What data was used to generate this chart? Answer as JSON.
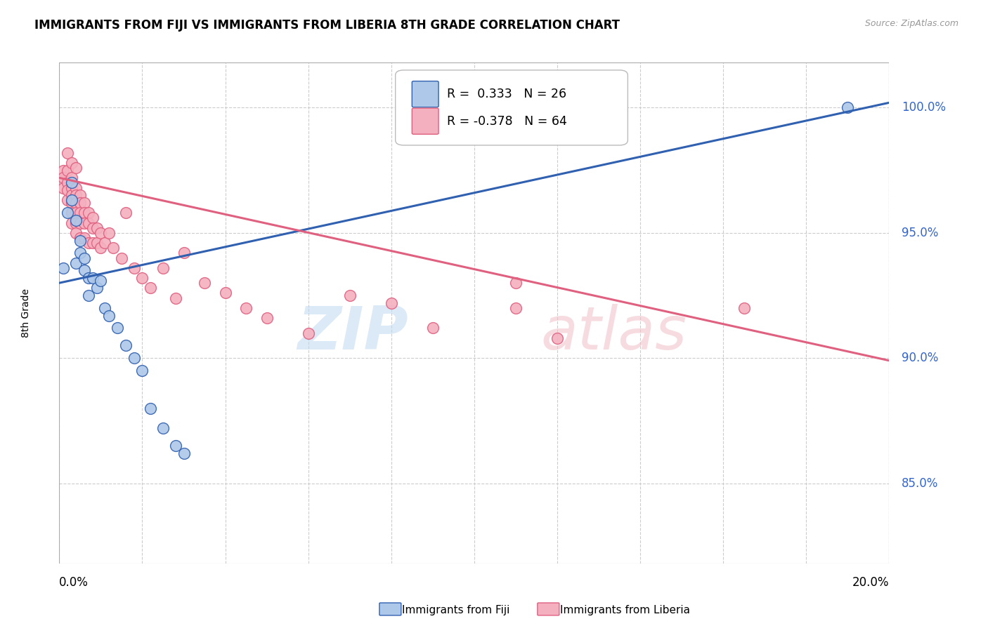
{
  "title": "IMMIGRANTS FROM FIJI VS IMMIGRANTS FROM LIBERIA 8TH GRADE CORRELATION CHART",
  "source": "Source: ZipAtlas.com",
  "ylabel": "8th Grade",
  "ytick_labels": [
    "100.0%",
    "95.0%",
    "90.0%",
    "85.0%"
  ],
  "ytick_values": [
    1.0,
    0.95,
    0.9,
    0.85
  ],
  "xmin": 0.0,
  "xmax": 0.2,
  "ymin": 0.818,
  "ymax": 1.018,
  "fiji_color": "#adc8e8",
  "liberia_color": "#f4b0be",
  "fiji_line_color": "#3060b0",
  "liberia_line_color": "#e06080",
  "fiji_R": 0.333,
  "fiji_N": 26,
  "liberia_R": -0.378,
  "liberia_N": 64,
  "background_color": "#ffffff",
  "grid_color": "#cccccc",
  "fiji_line_y0": 0.93,
  "fiji_line_y1": 1.002,
  "liberia_line_y0": 0.972,
  "liberia_line_y1": 0.899,
  "fiji_points_x": [
    0.001,
    0.002,
    0.003,
    0.004,
    0.005,
    0.005,
    0.006,
    0.006,
    0.007,
    0.007,
    0.008,
    0.009,
    0.01,
    0.011,
    0.012,
    0.014,
    0.016,
    0.018,
    0.02,
    0.022,
    0.025,
    0.028,
    0.03,
    0.19,
    0.003,
    0.004
  ],
  "fiji_points_y": [
    0.936,
    0.958,
    0.963,
    0.938,
    0.942,
    0.947,
    0.935,
    0.94,
    0.925,
    0.932,
    0.932,
    0.928,
    0.931,
    0.92,
    0.917,
    0.912,
    0.905,
    0.9,
    0.895,
    0.88,
    0.872,
    0.865,
    0.862,
    1.0,
    0.97,
    0.955
  ],
  "liberia_points_x": [
    0.001,
    0.001,
    0.001,
    0.002,
    0.002,
    0.002,
    0.002,
    0.003,
    0.003,
    0.003,
    0.003,
    0.003,
    0.003,
    0.004,
    0.004,
    0.004,
    0.004,
    0.004,
    0.004,
    0.005,
    0.005,
    0.005,
    0.005,
    0.005,
    0.006,
    0.006,
    0.006,
    0.006,
    0.007,
    0.007,
    0.007,
    0.008,
    0.008,
    0.008,
    0.009,
    0.009,
    0.01,
    0.01,
    0.011,
    0.012,
    0.013,
    0.015,
    0.016,
    0.018,
    0.02,
    0.022,
    0.025,
    0.028,
    0.03,
    0.035,
    0.04,
    0.045,
    0.05,
    0.06,
    0.07,
    0.08,
    0.09,
    0.11,
    0.12,
    0.165,
    0.002,
    0.003,
    0.004,
    0.11
  ],
  "liberia_points_y": [
    0.975,
    0.972,
    0.968,
    0.975,
    0.97,
    0.967,
    0.963,
    0.972,
    0.968,
    0.965,
    0.962,
    0.958,
    0.954,
    0.968,
    0.965,
    0.962,
    0.958,
    0.954,
    0.95,
    0.965,
    0.962,
    0.958,
    0.954,
    0.948,
    0.962,
    0.958,
    0.954,
    0.948,
    0.958,
    0.954,
    0.946,
    0.956,
    0.952,
    0.946,
    0.952,
    0.946,
    0.95,
    0.944,
    0.946,
    0.95,
    0.944,
    0.94,
    0.958,
    0.936,
    0.932,
    0.928,
    0.936,
    0.924,
    0.942,
    0.93,
    0.926,
    0.92,
    0.916,
    0.91,
    0.925,
    0.922,
    0.912,
    0.92,
    0.908,
    0.92,
    0.982,
    0.978,
    0.976,
    0.93
  ]
}
